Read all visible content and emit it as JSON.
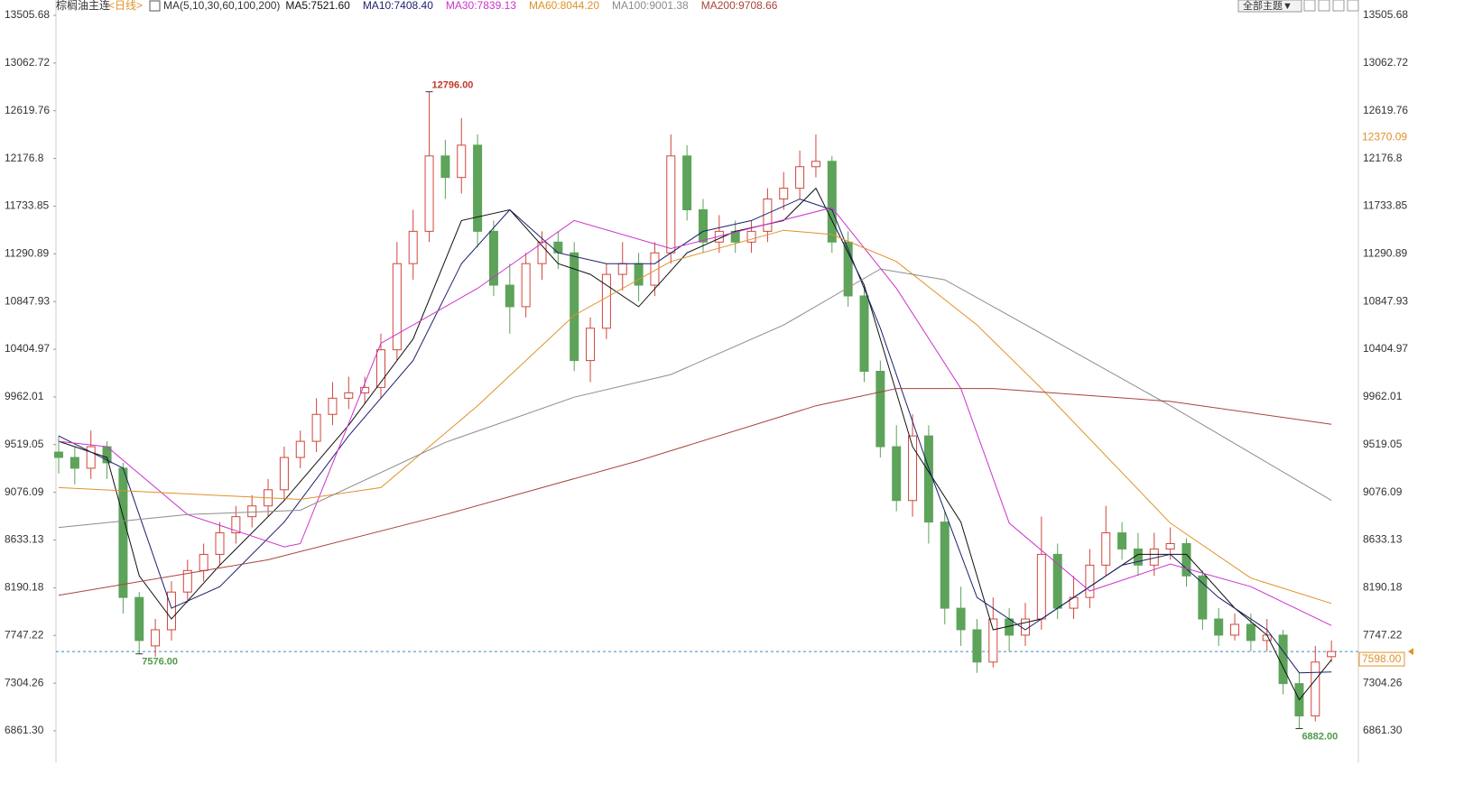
{
  "chart_data": {
    "type": "candlestick",
    "title": "棕榈油主连",
    "period": "<日线>",
    "indicator": "MA(5,10,30,60,100,200)",
    "theme_button": "全部主题▼",
    "up_color": "#d0463c",
    "down_color": "#5da35a",
    "ylim": [
      6568,
      13648
    ],
    "yticks": [
      {
        "value": 6861.3,
        "label": "6861.30"
      },
      7304.26,
      7747.22,
      8190.18,
      8633.13,
      9076.09,
      9519.05,
      9962.01,
      10404.97,
      10847.93,
      11290.89,
      11733.85,
      12176.8,
      12619.76,
      13062.72,
      13505.68
    ],
    "open": [
      9450,
      9400,
      9300,
      9500,
      9300,
      8100,
      7650,
      7800,
      8150,
      8350,
      8500,
      8700,
      8850,
      8950,
      9100,
      9400,
      9550,
      9800,
      9950,
      10000,
      10050,
      10400,
      11200,
      11500,
      12200,
      12000,
      12300,
      11500,
      11000,
      10800,
      11200,
      11400,
      11300,
      10300,
      10600,
      11100,
      11200,
      11000,
      11300,
      12200,
      11700,
      11400,
      11500,
      11400,
      11500,
      11800,
      11900,
      12100,
      12150,
      11400,
      10900,
      10200,
      9500,
      9000,
      9600,
      8800,
      8000,
      7800,
      7500,
      7900,
      7750,
      7900,
      8500,
      8000,
      8100,
      8400,
      8700,
      8550,
      8400,
      8550,
      8600,
      8300,
      7900,
      7750,
      7850,
      7700,
      7750,
      7300,
      7000,
      7550
    ],
    "high": [
      9600,
      9500,
      9650,
      9550,
      9350,
      8150,
      7900,
      8250,
      8450,
      8600,
      8800,
      8950,
      9050,
      9200,
      9500,
      9650,
      9950,
      10100,
      10150,
      10150,
      10550,
      11400,
      11700,
      12796,
      12350,
      12550,
      12400,
      11600,
      11200,
      11300,
      11500,
      11500,
      11400,
      10700,
      11200,
      11400,
      11300,
      11400,
      12400,
      12300,
      11800,
      11650,
      11600,
      11600,
      11900,
      12050,
      12250,
      12400,
      12200,
      11500,
      11000,
      10300,
      9700,
      9800,
      9700,
      8900,
      8200,
      7900,
      8100,
      8000,
      8050,
      8850,
      8600,
      8300,
      8550,
      8950,
      8800,
      8700,
      8700,
      8750,
      8650,
      8350,
      8000,
      7950,
      7950,
      7900,
      7800,
      7400,
      7650,
      7700
    ],
    "low": [
      9250,
      9150,
      9200,
      9200,
      7950,
      7576,
      7550,
      7700,
      8050,
      8250,
      8400,
      8600,
      8750,
      8850,
      9000,
      9300,
      9450,
      9700,
      9850,
      9900,
      9950,
      10300,
      11050,
      11400,
      11800,
      11850,
      11350,
      10900,
      10550,
      10700,
      11050,
      11150,
      10200,
      10100,
      10500,
      10950,
      10850,
      10900,
      11200,
      11600,
      11300,
      11300,
      11300,
      11300,
      11400,
      11700,
      11800,
      12000,
      11300,
      10800,
      10100,
      9400,
      8900,
      8850,
      8600,
      7850,
      7650,
      7400,
      7450,
      7600,
      7650,
      7800,
      7900,
      7900,
      8000,
      8300,
      8450,
      8300,
      8300,
      8450,
      8200,
      7800,
      7650,
      7700,
      7600,
      7600,
      7200,
      6882,
      6950,
      7500
    ],
    "close": [
      9400,
      9300,
      9500,
      9350,
      8100,
      7700,
      7800,
      8150,
      8350,
      8500,
      8700,
      8850,
      8950,
      9100,
      9400,
      9550,
      9800,
      9950,
      10000,
      10050,
      10400,
      11200,
      11500,
      12200,
      12000,
      12300,
      11500,
      11000,
      10800,
      11200,
      11400,
      11300,
      10300,
      10600,
      11100,
      11200,
      11000,
      11300,
      12200,
      11700,
      11400,
      11500,
      11400,
      11500,
      11800,
      11900,
      12100,
      12150,
      11400,
      10900,
      10200,
      9500,
      9000,
      9600,
      8800,
      8000,
      7800,
      7500,
      7900,
      7750,
      7900,
      8500,
      8000,
      8100,
      8400,
      8700,
      8550,
      8400,
      8550,
      8600,
      8300,
      7900,
      7750,
      7850,
      7700,
      7750,
      7300,
      7000,
      7500,
      7598
    ],
    "series": [
      {
        "name": "MA5",
        "label": "MA5:7521.60",
        "color": "#111111",
        "x": [
          0,
          3,
          5,
          7,
          10,
          14,
          18,
          22,
          25,
          28,
          31,
          33,
          36,
          39,
          42,
          45,
          47,
          50,
          53,
          56,
          58,
          61,
          64,
          67,
          70,
          73,
          75,
          77,
          79
        ],
        "values": [
          9550,
          9400,
          8300,
          7900,
          8400,
          9000,
          9700,
          10500,
          11600,
          11700,
          11200,
          11100,
          10800,
          11300,
          11500,
          11600,
          11900,
          11000,
          9500,
          8800,
          7800,
          7900,
          8200,
          8500,
          8500,
          8000,
          7750,
          7150,
          7521.6
        ]
      },
      {
        "name": "MA10",
        "label": "MA10:7408.40",
        "color": "#1c1f6b",
        "x": [
          0,
          4,
          7,
          10,
          14,
          18,
          22,
          25,
          28,
          31,
          34,
          37,
          40,
          43,
          46,
          48,
          51,
          54,
          57,
          60,
          63,
          66,
          69,
          72,
          75,
          77,
          79
        ],
        "values": [
          9600,
          9300,
          8000,
          8200,
          8800,
          9600,
          10300,
          11200,
          11700,
          11300,
          11200,
          11200,
          11500,
          11600,
          11800,
          11700,
          10600,
          9300,
          8100,
          7800,
          8100,
          8400,
          8500,
          8100,
          7800,
          7400,
          7408.4
        ]
      },
      {
        "name": "MA30",
        "label": "MA30:7839.13",
        "color": "#cc33cc",
        "x": [
          0,
          3,
          8,
          14,
          15,
          20,
          26,
          32,
          38,
          48,
          52,
          56,
          59,
          64,
          69,
          74,
          79
        ],
        "values": [
          9550,
          9500,
          8870,
          8570,
          8600,
          10460,
          10970,
          11600,
          11340,
          11720,
          10970,
          10040,
          8790,
          8160,
          8410,
          8200,
          7839.13
        ]
      },
      {
        "name": "MA60",
        "label": "MA60:8044.20",
        "color": "#e0912a",
        "x": [
          0,
          15,
          20,
          26,
          32,
          38,
          45,
          48,
          52,
          57,
          61,
          69,
          74,
          79
        ],
        "values": [
          9120,
          9010,
          9120,
          9880,
          10720,
          11220,
          11510,
          11470,
          11220,
          10630,
          10040,
          8790,
          8280,
          8044.2
        ]
      },
      {
        "name": "MA100",
        "label": "MA100:9001.38",
        "color": "#8c8c8c",
        "x": [
          0,
          8,
          15,
          24,
          32,
          38,
          45,
          51,
          55,
          61,
          69,
          79
        ],
        "values": [
          8750,
          8870,
          8910,
          9540,
          9960,
          10170,
          10630,
          11150,
          11050,
          10550,
          9880,
          9001.38
        ]
      },
      {
        "name": "MA200",
        "label": "MA200:9708.66",
        "color": "#a8443c",
        "x": [
          0,
          13,
          24,
          36,
          47,
          52,
          58,
          69,
          79
        ],
        "values": [
          8120,
          8450,
          8870,
          9370,
          9880,
          10040,
          10040,
          9920,
          9708.66
        ]
      }
    ],
    "annotations": [
      {
        "index": 23,
        "value": 12796,
        "label": "12796.00",
        "color": "#c0392b"
      },
      {
        "index": 5,
        "value": 7576,
        "label": "7576.00",
        "color": "#4e9a4a"
      },
      {
        "index": 77,
        "value": 6882,
        "label": "6882.00",
        "color": "#4e9a4a"
      }
    ],
    "right_marker": {
      "value": 12370.09,
      "color": "#e0912a"
    },
    "last_price": {
      "value": 7598,
      "label": "7598.00",
      "color": "#3a86c8"
    }
  }
}
